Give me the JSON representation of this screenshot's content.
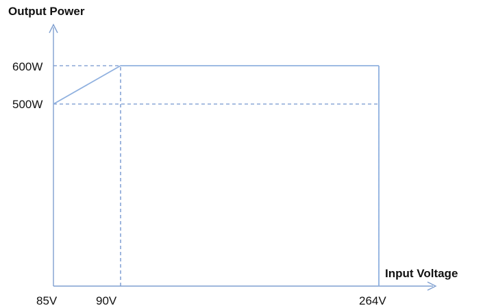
{
  "chart_data": {
    "type": "line",
    "ylabel": "Output Power",
    "xlabel": "Input Voltage",
    "x_tick_labels": [
      "85V",
      "90V",
      "264V"
    ],
    "y_tick_labels": [
      "500W",
      "600W"
    ],
    "x_ticks": [
      85,
      90,
      264
    ],
    "y_ticks": [
      500,
      600
    ],
    "x_range": [
      85,
      264
    ],
    "y_range": [
      500,
      600
    ],
    "series": [
      {
        "points": [
          {
            "x": 85,
            "y": 500
          },
          {
            "x": 90,
            "y": 600
          },
          {
            "x": 264,
            "y": 600
          }
        ]
      }
    ],
    "guides": {
      "vertical": [
        90,
        264
      ],
      "horizontal": [
        500,
        600
      ]
    },
    "colors": {
      "series": "#8fb0df",
      "axes": "#7f9fd0",
      "guides": "#4f79c2"
    }
  }
}
